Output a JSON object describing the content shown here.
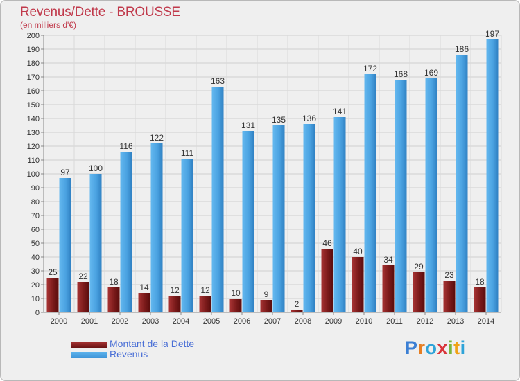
{
  "header": {
    "title": "Revenus/Dette - BROUSSE",
    "subtitle": "(en milliers d'€)"
  },
  "legend": {
    "debt_label": "Montant de la Dette",
    "revenue_label": "Revenus"
  },
  "logo": {
    "letters": [
      "P",
      "r",
      "o",
      "x",
      "i",
      "t",
      "i"
    ],
    "colors": [
      "#3b7fd4",
      "#e67e22",
      "#2ea3d8",
      "#d9343a",
      "#79b63c",
      "#f0a215",
      "#2ea3d8"
    ]
  },
  "colors": {
    "debt": "#6b1414",
    "debt_light": "#a83434",
    "revenue": "#3f95d8",
    "revenue_light": "#5cb2ec"
  },
  "chart_data": {
    "type": "bar",
    "title": "Revenus/Dette - BROUSSE",
    "ylabel": "(en milliers d'€)",
    "xlabel": "",
    "ylim": [
      0,
      200
    ],
    "ytick_step": 10,
    "grid": true,
    "categories": [
      "2000",
      "2001",
      "2002",
      "2003",
      "2004",
      "2005",
      "2006",
      "2007",
      "2008",
      "2009",
      "2010",
      "2011",
      "2012",
      "2013",
      "2014"
    ],
    "series": [
      {
        "name": "Montant de la Dette",
        "values": [
          25,
          22,
          18,
          14,
          12,
          12,
          10,
          9,
          2,
          46,
          40,
          34,
          29,
          23,
          18
        ]
      },
      {
        "name": "Revenus",
        "values": [
          97,
          100,
          116,
          122,
          111,
          163,
          131,
          135,
          136,
          141,
          172,
          168,
          169,
          186,
          197
        ]
      }
    ]
  }
}
